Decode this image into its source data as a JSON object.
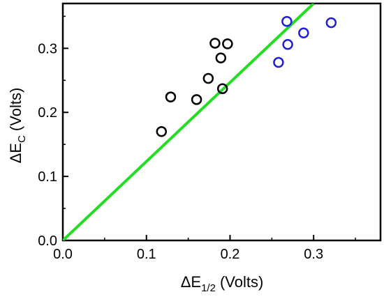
{
  "chart_data": {
    "type": "scatter",
    "xlabel": {
      "main": "ΔE",
      "sub": "1/2",
      "unit": "(Volts)"
    },
    "ylabel": {
      "main": "ΔE",
      "sub": "C",
      "unit": "(Volts)"
    },
    "xlim": [
      0.0,
      0.38
    ],
    "ylim": [
      0.0,
      0.37
    ],
    "x_ticks": [
      "0.0",
      "0.1",
      "0.2",
      "0.3"
    ],
    "y_ticks": [
      "0.0",
      "0.1",
      "0.2",
      "0.3"
    ],
    "grid": false,
    "series": [
      {
        "marker": "open-circle",
        "color": "#000000",
        "points": [
          [
            0.118,
            0.17
          ],
          [
            0.129,
            0.224
          ],
          [
            0.16,
            0.22
          ],
          [
            0.174,
            0.253
          ],
          [
            0.182,
            0.308
          ],
          [
            0.189,
            0.285
          ],
          [
            0.191,
            0.237
          ],
          [
            0.197,
            0.307
          ]
        ]
      },
      {
        "marker": "open-circle",
        "color": "#1f1fd6",
        "points": [
          [
            0.258,
            0.278
          ],
          [
            0.268,
            0.342
          ],
          [
            0.269,
            0.306
          ],
          [
            0.288,
            0.324
          ],
          [
            0.321,
            0.34
          ]
        ]
      },
      {
        "type": "line",
        "color": "#22dd22",
        "points": [
          [
            0.0,
            0.0
          ],
          [
            0.3,
            0.37
          ]
        ]
      }
    ]
  }
}
